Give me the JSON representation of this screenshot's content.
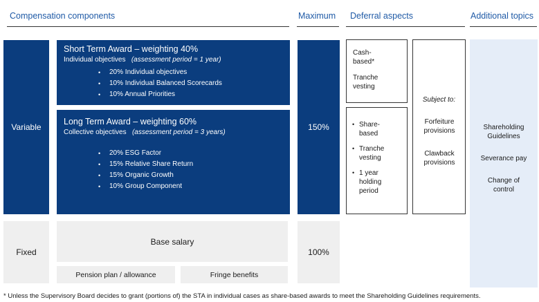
{
  "headers": {
    "compensation_components": "Compensation components",
    "maximum": "Maximum",
    "deferral_aspects": "Deferral aspects",
    "additional_topics": "Additional topics"
  },
  "variable": {
    "label": "Variable",
    "maximum": "150%",
    "sta": {
      "title": "Short Term Award – weighting 40%",
      "objective_prefix": "Individual objectives",
      "objective_period": "(assessment period = 1 year)",
      "items": [
        "20%  Individual objectives",
        "10%  Individual Balanced Scorecards",
        "10%  Annual Priorities"
      ]
    },
    "lta": {
      "title": "Long Term Award – weighting 60%",
      "objective_prefix": "Collective objectives",
      "objective_period": "(assessment period = 3 years)",
      "items": [
        "20%  ESG Factor",
        "15%  Relative Share Return",
        "15%  Organic Growth",
        "10%  Group Component"
      ]
    }
  },
  "fixed": {
    "label": "Fixed",
    "maximum": "100%",
    "base_salary": "Base salary",
    "pension": "Pension plan / allowance",
    "fringe": "Fringe benefits"
  },
  "deferral": {
    "cash_based": "Cash-based*",
    "cash_tranche": "Tranche vesting",
    "share_items": [
      "Share-based",
      "Tranche vesting",
      "1 year holding period"
    ],
    "subject_to": "Subject to:",
    "forfeiture": "Forfeiture provisions",
    "clawback": "Clawback provisions"
  },
  "additional": {
    "shareholding": "Shareholding Guidelines",
    "severance": "Severance pay",
    "change_of_control": "Change of control"
  },
  "footnote": "* Unless the Supervisory Board decides to grant (portions of) the STA in individual cases as share-based awards to meet the Shareholding Guidelines requirements.",
  "colors": {
    "navy": "#0b3d7e",
    "header_blue": "#1f5aa6",
    "light_grey": "#efefef",
    "light_blue": "#e5edf8"
  }
}
